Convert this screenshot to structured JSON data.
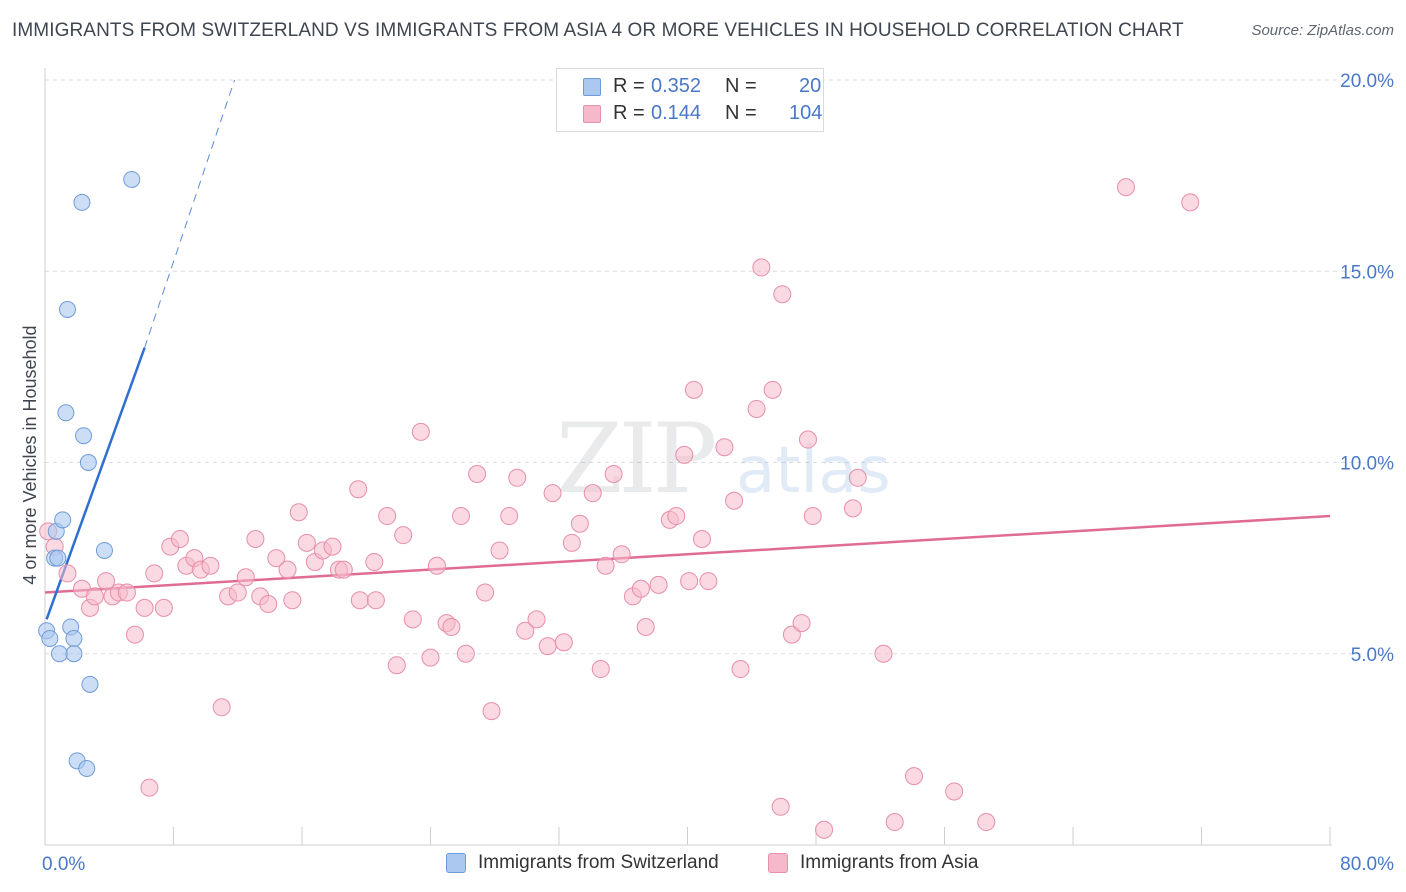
{
  "title": "IMMIGRANTS FROM SWITZERLAND VS IMMIGRANTS FROM ASIA 4 OR MORE VEHICLES IN HOUSEHOLD CORRELATION CHART",
  "source": "Source: ZipAtlas.com",
  "watermark": {
    "zip": "ZIP",
    "atlas": "atlas"
  },
  "legend": {
    "rows": [
      {
        "r_label": "R =",
        "r_value": "0.352",
        "n_label": "N =",
        "n_value": "20"
      },
      {
        "r_label": "R =",
        "r_value": "0.144",
        "n_label": "N =",
        "n_value": "104"
      }
    ]
  },
  "bottom_legend": [
    {
      "label": "Immigrants from Switzerland"
    },
    {
      "label": "Immigrants from Asia"
    }
  ],
  "chart_data": {
    "type": "scatter",
    "title": "IMMIGRANTS FROM SWITZERLAND VS IMMIGRANTS FROM ASIA 4 OR MORE VEHICLES IN HOUSEHOLD CORRELATION CHART",
    "xlabel": "",
    "ylabel": "4 or more Vehicles in Household",
    "xlim": [
      0,
      80
    ],
    "ylim": [
      0,
      20
    ],
    "x_tick_labels": [
      "0.0%",
      "80.0%"
    ],
    "y_ticks": [
      {
        "value": 5,
        "label": "5.0%"
      },
      {
        "value": 10,
        "label": "10.0%"
      },
      {
        "value": 15,
        "label": "15.0%"
      },
      {
        "value": 20,
        "label": "20.0%"
      }
    ],
    "grid": true,
    "legend_position": "top-center",
    "colors": {
      "switzerland_fill": "#aac8f0",
      "switzerland_stroke": "#6f9bd8",
      "switzerland_line": "#2f6fd0",
      "asia_fill": "#f6b9cb",
      "asia_stroke": "#e78fab",
      "asia_line": "#e06c95",
      "tick_text": "#4a78c8"
    },
    "series": [
      {
        "name": "Immigrants from Switzerland",
        "R": 0.352,
        "N": 20,
        "trend": {
          "x0": 0.1,
          "y0": 5.9,
          "x1": 6.2,
          "y1": 13.0,
          "dash_x1": 11.8,
          "dash_y1": 20.0
        },
        "points": [
          [
            0.1,
            5.6
          ],
          [
            0.3,
            5.4
          ],
          [
            0.6,
            7.5
          ],
          [
            0.7,
            8.2
          ],
          [
            0.8,
            7.5
          ],
          [
            0.9,
            5.0
          ],
          [
            1.1,
            8.5
          ],
          [
            1.3,
            11.3
          ],
          [
            1.4,
            14.0
          ],
          [
            1.6,
            5.7
          ],
          [
            1.8,
            5.4
          ],
          [
            1.8,
            5.0
          ],
          [
            2.0,
            2.2
          ],
          [
            2.3,
            16.8
          ],
          [
            2.4,
            10.7
          ],
          [
            2.6,
            2.0
          ],
          [
            2.7,
            10.0
          ],
          [
            2.8,
            4.2
          ],
          [
            3.7,
            7.7
          ],
          [
            5.4,
            17.4
          ]
        ]
      },
      {
        "name": "Immigrants from Asia",
        "R": 0.144,
        "N": 104,
        "trend": {
          "x0": 0,
          "y0": 6.6,
          "x1": 80,
          "y1": 8.6
        },
        "points": [
          [
            0.2,
            8.2
          ],
          [
            0.6,
            7.8
          ],
          [
            1.4,
            7.1
          ],
          [
            2.3,
            6.7
          ],
          [
            2.8,
            6.2
          ],
          [
            3.1,
            6.5
          ],
          [
            3.8,
            6.9
          ],
          [
            4.2,
            6.5
          ],
          [
            4.6,
            6.6
          ],
          [
            5.1,
            6.6
          ],
          [
            5.6,
            5.5
          ],
          [
            6.2,
            6.2
          ],
          [
            6.8,
            7.1
          ],
          [
            7.4,
            6.2
          ],
          [
            7.8,
            7.8
          ],
          [
            8.4,
            8.0
          ],
          [
            8.8,
            7.3
          ],
          [
            9.3,
            7.5
          ],
          [
            9.7,
            7.2
          ],
          [
            10.3,
            7.3
          ],
          [
            11.0,
            3.6
          ],
          [
            11.4,
            6.5
          ],
          [
            12.0,
            6.6
          ],
          [
            12.5,
            7.0
          ],
          [
            13.1,
            8.0
          ],
          [
            13.4,
            6.5
          ],
          [
            13.9,
            6.3
          ],
          [
            14.4,
            7.5
          ],
          [
            15.1,
            7.2
          ],
          [
            15.4,
            6.4
          ],
          [
            15.8,
            8.7
          ],
          [
            16.3,
            7.9
          ],
          [
            16.8,
            7.4
          ],
          [
            17.3,
            7.7
          ],
          [
            17.9,
            7.8
          ],
          [
            18.3,
            7.2
          ],
          [
            18.6,
            7.2
          ],
          [
            19.5,
            9.3
          ],
          [
            19.6,
            6.4
          ],
          [
            20.5,
            7.4
          ],
          [
            20.6,
            6.4
          ],
          [
            21.3,
            8.6
          ],
          [
            21.9,
            4.7
          ],
          [
            22.3,
            8.1
          ],
          [
            22.9,
            5.9
          ],
          [
            23.4,
            10.8
          ],
          [
            24.0,
            4.9
          ],
          [
            24.4,
            7.3
          ],
          [
            25.0,
            5.8
          ],
          [
            25.3,
            5.7
          ],
          [
            25.9,
            8.6
          ],
          [
            26.2,
            5.0
          ],
          [
            26.9,
            9.7
          ],
          [
            27.4,
            6.6
          ],
          [
            27.8,
            3.5
          ],
          [
            28.3,
            7.7
          ],
          [
            28.9,
            8.6
          ],
          [
            29.4,
            9.6
          ],
          [
            29.9,
            5.6
          ],
          [
            30.6,
            5.9
          ],
          [
            31.3,
            5.2
          ],
          [
            31.6,
            9.2
          ],
          [
            32.3,
            5.3
          ],
          [
            32.8,
            7.9
          ],
          [
            33.3,
            8.4
          ],
          [
            34.1,
            9.2
          ],
          [
            34.6,
            4.6
          ],
          [
            34.9,
            7.3
          ],
          [
            35.4,
            9.7
          ],
          [
            35.9,
            7.6
          ],
          [
            36.6,
            6.5
          ],
          [
            37.1,
            6.7
          ],
          [
            37.4,
            5.7
          ],
          [
            38.2,
            6.8
          ],
          [
            38.9,
            8.5
          ],
          [
            39.3,
            8.6
          ],
          [
            39.8,
            10.2
          ],
          [
            40.1,
            6.9
          ],
          [
            40.4,
            11.9
          ],
          [
            40.9,
            8.0
          ],
          [
            41.3,
            6.9
          ],
          [
            42.3,
            10.4
          ],
          [
            42.9,
            9.0
          ],
          [
            43.3,
            4.6
          ],
          [
            44.3,
            11.4
          ],
          [
            44.6,
            15.1
          ],
          [
            45.3,
            11.9
          ],
          [
            45.8,
            1.0
          ],
          [
            45.9,
            14.4
          ],
          [
            46.5,
            5.5
          ],
          [
            47.1,
            5.8
          ],
          [
            47.5,
            10.6
          ],
          [
            47.8,
            8.6
          ],
          [
            48.5,
            0.4
          ],
          [
            50.3,
            8.8
          ],
          [
            50.6,
            9.6
          ],
          [
            52.2,
            5.0
          ],
          [
            52.9,
            0.6
          ],
          [
            54.1,
            1.8
          ],
          [
            56.6,
            1.4
          ],
          [
            58.6,
            0.6
          ],
          [
            67.3,
            17.2
          ],
          [
            71.3,
            16.8
          ],
          [
            6.5,
            1.5
          ]
        ]
      }
    ]
  }
}
